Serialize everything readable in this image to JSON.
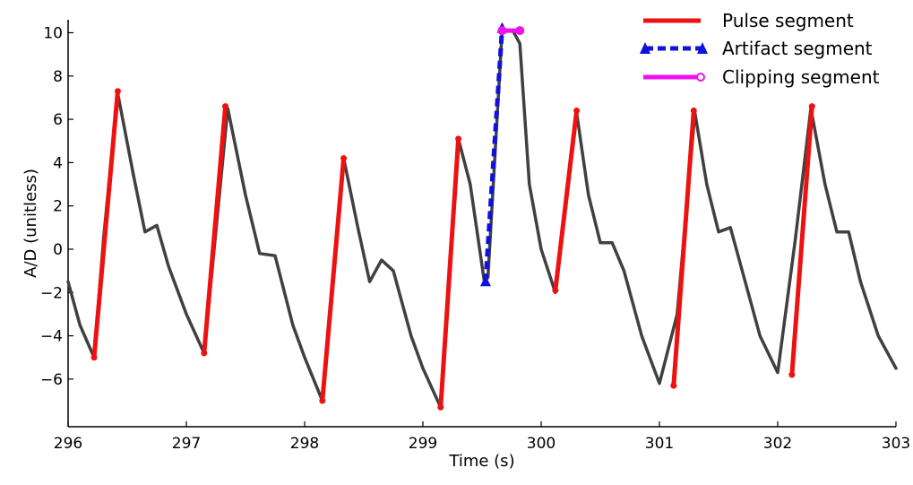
{
  "chart_data": {
    "type": "line",
    "title": "",
    "xlabel": "Time (s)",
    "ylabel": "A/D (unitless)",
    "xlim": [
      296,
      303
    ],
    "ylim": [
      -8.2,
      10.6
    ],
    "xticks": [
      296,
      297,
      298,
      299,
      300,
      301,
      302,
      303
    ],
    "yticks": [
      10,
      8,
      6,
      4,
      2,
      0,
      -2,
      -4,
      -6
    ],
    "ytick_labels": [
      "10",
      "8",
      "6",
      "4",
      "2",
      "0",
      "−2",
      "−4",
      "−6"
    ],
    "grid": false,
    "legend_position": "top-right",
    "series": [
      {
        "color": "#404040",
        "x": [
          296.0,
          296.1,
          296.22,
          296.3,
          296.42,
          296.55,
          296.65,
          296.75,
          296.85,
          297.0,
          297.15,
          297.35,
          297.5,
          297.62,
          297.75,
          297.9,
          298.0,
          298.15,
          298.33,
          298.45,
          298.55,
          298.65,
          298.75,
          298.9,
          299.0,
          299.15,
          299.3,
          299.4,
          299.52,
          299.55,
          299.67,
          299.76,
          299.82,
          299.9,
          300.0,
          300.12,
          300.3,
          300.4,
          300.5,
          300.6,
          300.7,
          300.85,
          301.0,
          301.15,
          301.3,
          301.4,
          301.5,
          301.6,
          301.7,
          301.85,
          302.0,
          302.15,
          302.28,
          302.4,
          302.5,
          302.6,
          302.7,
          302.85,
          303.0
        ],
        "y": [
          -1.5,
          -3.5,
          -5.0,
          0.5,
          7.2,
          3.5,
          0.8,
          1.1,
          -0.8,
          -3.0,
          -4.8,
          6.5,
          2.5,
          -0.2,
          -0.3,
          -3.5,
          -5.0,
          -7.0,
          4.2,
          1.0,
          -1.5,
          -0.5,
          -1.0,
          -4.0,
          -5.5,
          -7.3,
          5.1,
          3.0,
          -1.5,
          -1.3,
          10.1,
          10.1,
          9.5,
          3.0,
          0.0,
          -2.0,
          6.3,
          2.5,
          0.3,
          0.3,
          -1.0,
          -4.0,
          -6.2,
          -3.0,
          6.3,
          3.0,
          0.8,
          1.0,
          -1.0,
          -4.0,
          -5.7,
          0.5,
          6.5,
          3.0,
          0.8,
          0.8,
          -1.5,
          -4.0,
          -5.5
        ]
      }
    ],
    "pulse_segments": [
      {
        "x": [
          296.22,
          296.42
        ],
        "y": [
          -5.0,
          7.3
        ]
      },
      {
        "x": [
          297.15,
          297.33
        ],
        "y": [
          -4.8,
          6.6
        ]
      },
      {
        "x": [
          298.15,
          298.33
        ],
        "y": [
          -7.0,
          4.2
        ]
      },
      {
        "x": [
          299.15,
          299.3
        ],
        "y": [
          -7.3,
          5.1
        ]
      },
      {
        "x": [
          300.12,
          300.3
        ],
        "y": [
          -1.9,
          6.4
        ]
      },
      {
        "x": [
          301.12,
          301.29
        ],
        "y": [
          -6.3,
          6.4
        ]
      },
      {
        "x": [
          302.12,
          302.29
        ],
        "y": [
          -5.8,
          6.6
        ]
      }
    ],
    "artifact_segment": {
      "x": [
        299.53,
        299.67
      ],
      "y": [
        -1.5,
        10.2
      ]
    },
    "clipping_segment": {
      "x": [
        299.67,
        299.82
      ],
      "y": [
        10.1,
        10.1
      ]
    },
    "legend": [
      {
        "label": "Pulse segment",
        "color": "#ee1111",
        "style": "solid"
      },
      {
        "label": "Artifact segment",
        "color": "#1111dd",
        "style": "dashed-triangle"
      },
      {
        "label": "Clipping segment",
        "color": "#ee11ee",
        "style": "solid-circle"
      }
    ]
  }
}
